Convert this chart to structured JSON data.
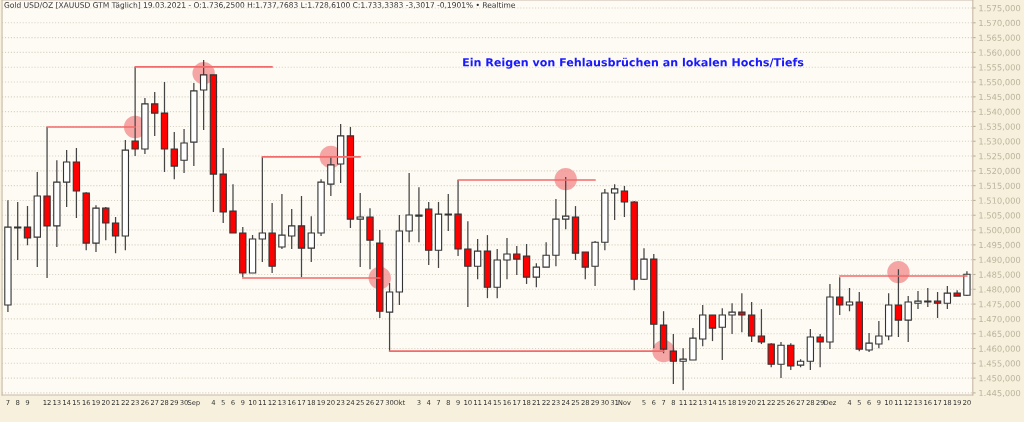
{
  "chart_data": {
    "type": "candlestick",
    "title": "Gold USD/OZ [XAUUSD GTM Täglich] 19.03.2021 - O:1.736,2500 H:1.737,7683 L:1.728,6100 C:1.733,3383 -3,3017 -0,1901% • Realtime",
    "annotations": [
      "Ein Reigen von Fehlausbrüchen an lokalen Hochs/Tiefs"
    ],
    "categories": [
      "7",
      "8",
      "9",
      null,
      "12",
      "13",
      "14",
      "15",
      "16",
      "19",
      "20",
      "21",
      "22",
      "23",
      "26",
      "27",
      "28",
      "29",
      "30",
      "Sep",
      null,
      "4",
      "5",
      "6",
      "9",
      "10",
      "11",
      "12",
      "13",
      "16",
      "17",
      "18",
      "19",
      "20",
      "23",
      "24",
      "25",
      "26",
      "27",
      "30",
      "Okt",
      null,
      "3",
      "4",
      "7",
      "8",
      "9",
      "10",
      "11",
      "14",
      "15",
      "16",
      "17",
      "18",
      "21",
      "22",
      "23",
      "24",
      "25",
      "28",
      "29",
      "30",
      "31",
      "Nov",
      null,
      "5",
      "6",
      "7",
      "8",
      "11",
      "12",
      "13",
      "14",
      "15",
      "18",
      "19",
      "20",
      "21",
      "22",
      "25",
      "26",
      "27",
      "28",
      "29",
      "Dez",
      null,
      "4",
      "5",
      "6",
      "9",
      "10",
      "11",
      "12",
      "13",
      "16",
      "17",
      "18",
      "19",
      "20"
    ],
    "ohlc": [
      [
        1474.7,
        1510.1,
        1472.3,
        1501.0
      ],
      [
        1500.7,
        1509.5,
        1489.9,
        1501.0
      ],
      [
        1501.0,
        1508.1,
        1494.9,
        1497.3
      ],
      [
        1497.6,
        1519.6,
        1487.5,
        1511.5
      ],
      [
        1511.5,
        1534.8,
        1483.8,
        1501.4
      ],
      [
        1501.4,
        1523.6,
        1494.3,
        1516.2
      ],
      [
        1516.2,
        1527.0,
        1507.8,
        1523.0
      ],
      [
        1523.0,
        1527.7,
        1504.1,
        1513.2
      ],
      [
        1512.5,
        1512.8,
        1493.2,
        1495.6
      ],
      [
        1495.6,
        1508.4,
        1492.6,
        1507.4
      ],
      [
        1507.4,
        1507.8,
        1496.6,
        1502.4
      ],
      [
        1502.4,
        1504.4,
        1492.2,
        1498.0
      ],
      [
        1498.0,
        1530.4,
        1493.2,
        1527.0
      ],
      [
        1530.1,
        1555.1,
        1525.0,
        1527.4
      ],
      [
        1527.4,
        1544.6,
        1525.7,
        1542.6
      ],
      [
        1542.6,
        1546.6,
        1531.8,
        1539.5
      ],
      [
        1539.5,
        1550.0,
        1519.6,
        1527.4
      ],
      [
        1527.4,
        1533.1,
        1517.2,
        1521.6
      ],
      [
        1523.6,
        1534.1,
        1519.3,
        1529.4
      ],
      [
        1529.7,
        1549.7,
        1521.6,
        1547.0
      ],
      [
        1547.3,
        1557.4,
        1533.8,
        1552.4
      ],
      [
        1552.4,
        1552.4,
        1506.1,
        1518.9
      ],
      [
        1518.9,
        1527.7,
        1502.4,
        1506.1
      ],
      [
        1506.4,
        1515.5,
        1499.0,
        1499.0
      ],
      [
        1499.0,
        1501.0,
        1484.1,
        1485.5
      ],
      [
        1485.5,
        1498.3,
        1485.5,
        1497.0
      ],
      [
        1497.0,
        1524.7,
        1489.2,
        1499.0
      ],
      [
        1499.0,
        1509.1,
        1485.5,
        1487.8
      ],
      [
        1494.3,
        1512.2,
        1493.6,
        1498.3
      ],
      [
        1498.0,
        1507.1,
        1493.6,
        1501.4
      ],
      [
        1501.4,
        1511.5,
        1484.1,
        1493.9
      ],
      [
        1493.9,
        1504.7,
        1489.2,
        1499.0
      ],
      [
        1499.0,
        1517.2,
        1498.0,
        1516.2
      ],
      [
        1515.5,
        1524.7,
        1511.5,
        1522.0
      ],
      [
        1522.3,
        1535.8,
        1515.9,
        1531.8
      ],
      [
        1531.8,
        1534.8,
        1500.7,
        1503.7
      ],
      [
        1503.7,
        1512.5,
        1487.5,
        1504.4
      ],
      [
        1504.4,
        1507.4,
        1486.8,
        1496.6
      ],
      [
        1495.6,
        1500.0,
        1470.3,
        1472.6
      ],
      [
        1472.3,
        1482.1,
        1459.1,
        1479.1
      ],
      [
        1479.1,
        1505.1,
        1474.7,
        1499.7
      ],
      [
        1499.7,
        1519.3,
        1495.9,
        1505.1
      ],
      [
        1504.7,
        1514.5,
        1495.9,
        1505.1
      ],
      [
        1507.1,
        1509.5,
        1488.2,
        1493.2
      ],
      [
        1493.2,
        1509.5,
        1487.2,
        1505.4
      ],
      [
        1505.1,
        1512.2,
        1499.7,
        1505.4
      ],
      [
        1505.4,
        1516.9,
        1491.2,
        1493.6
      ],
      [
        1493.6,
        1503.0,
        1474.0,
        1487.8
      ],
      [
        1487.8,
        1497.0,
        1483.4,
        1492.9
      ],
      [
        1492.9,
        1498.3,
        1477.0,
        1480.7
      ],
      [
        1480.7,
        1493.6,
        1477.0,
        1489.9
      ],
      [
        1489.9,
        1497.3,
        1483.4,
        1491.9
      ],
      [
        1491.9,
        1494.6,
        1484.8,
        1490.2
      ],
      [
        1491.2,
        1495.3,
        1481.8,
        1484.1
      ],
      [
        1484.1,
        1488.8,
        1480.7,
        1487.5
      ],
      [
        1487.5,
        1495.9,
        1487.5,
        1491.5
      ],
      [
        1491.5,
        1510.5,
        1487.8,
        1503.7
      ],
      [
        1503.7,
        1517.9,
        1500.3,
        1504.7
      ],
      [
        1504.4,
        1508.1,
        1489.9,
        1492.2
      ],
      [
        1492.6,
        1492.6,
        1483.4,
        1487.5
      ],
      [
        1487.8,
        1496.3,
        1481.1,
        1495.9
      ],
      [
        1495.9,
        1513.9,
        1493.2,
        1512.5
      ],
      [
        1512.5,
        1515.5,
        1503.4,
        1513.9
      ],
      [
        1513.2,
        1514.9,
        1504.4,
        1509.5
      ],
      [
        1509.5,
        1509.8,
        1479.7,
        1483.4
      ],
      [
        1483.4,
        1493.9,
        1483.1,
        1490.2
      ],
      [
        1490.2,
        1491.9,
        1460.1,
        1468.2
      ],
      [
        1467.9,
        1472.6,
        1458.4,
        1459.8
      ],
      [
        1459.1,
        1464.9,
        1448.0,
        1455.7
      ],
      [
        1455.7,
        1460.1,
        1445.9,
        1456.4
      ],
      [
        1456.1,
        1466.9,
        1456.1,
        1463.5
      ],
      [
        1463.2,
        1474.7,
        1460.8,
        1471.3
      ],
      [
        1471.3,
        1471.3,
        1462.5,
        1466.9
      ],
      [
        1467.2,
        1473.6,
        1456.1,
        1471.3
      ],
      [
        1471.3,
        1475.3,
        1464.9,
        1472.3
      ],
      [
        1472.3,
        1478.7,
        1465.5,
        1471.3
      ],
      [
        1471.3,
        1475.7,
        1462.2,
        1464.2
      ],
      [
        1464.2,
        1473.3,
        1461.5,
        1462.2
      ],
      [
        1461.5,
        1461.8,
        1453.7,
        1454.7
      ],
      [
        1454.7,
        1462.2,
        1450.0,
        1461.1
      ],
      [
        1461.1,
        1461.8,
        1452.7,
        1454.1
      ],
      [
        1454.4,
        1456.4,
        1453.7,
        1455.7
      ],
      [
        1455.7,
        1466.6,
        1452.7,
        1463.9
      ],
      [
        1463.9,
        1464.9,
        1453.7,
        1462.2
      ],
      [
        1462.2,
        1481.8,
        1459.8,
        1477.4
      ],
      [
        1477.4,
        1484.1,
        1471.3,
        1474.7
      ],
      [
        1474.7,
        1480.4,
        1472.6,
        1475.7
      ],
      [
        1475.7,
        1479.1,
        1459.1,
        1459.8
      ],
      [
        1459.5,
        1465.2,
        1458.8,
        1461.8
      ],
      [
        1461.5,
        1469.3,
        1460.1,
        1464.2
      ],
      [
        1464.2,
        1478.7,
        1462.8,
        1474.7
      ],
      [
        1474.7,
        1486.8,
        1463.9,
        1469.6
      ],
      [
        1469.6,
        1477.7,
        1462.2,
        1475.7
      ],
      [
        1475.3,
        1479.4,
        1473.3,
        1476.0
      ],
      [
        1475.7,
        1480.4,
        1474.0,
        1476.0
      ],
      [
        1476.0,
        1479.1,
        1470.3,
        1475.3
      ],
      [
        1475.3,
        1481.1,
        1473.3,
        1478.7
      ],
      [
        1478.7,
        1479.7,
        1477.7,
        1477.7
      ],
      [
        1478.0,
        1486.1,
        1477.7,
        1485.1
      ]
    ],
    "series": [
      {
        "type": "line",
        "color": "#f26b6b",
        "values": [
          null,
          null,
          null,
          null,
          1534.8,
          null,
          null,
          null,
          null,
          null,
          null,
          null,
          null,
          1534.8,
          null,
          null,
          null,
          null,
          null,
          null,
          null,
          null,
          null,
          null,
          null,
          null,
          null,
          null,
          null,
          null,
          null,
          null,
          null,
          null,
          null,
          null,
          null,
          null,
          null,
          null,
          null,
          null,
          null,
          null,
          null,
          null,
          null,
          null,
          null,
          null,
          null,
          null,
          null,
          null,
          null,
          null,
          null,
          null,
          null,
          null,
          null,
          null,
          null,
          null,
          null,
          null,
          null,
          null,
          null,
          null,
          null,
          null,
          null,
          null,
          null,
          null,
          null,
          null,
          null,
          null,
          null,
          null,
          null,
          null,
          null,
          null,
          null,
          null,
          null,
          null,
          null,
          null,
          null,
          null,
          null,
          null,
          null,
          null,
          null
        ]
      },
      {
        "type": "line",
        "color": "#f26b6b",
        "values": [
          null,
          null,
          null,
          null,
          null,
          null,
          null,
          null,
          null,
          null,
          null,
          null,
          null,
          1555.1,
          null,
          null,
          null,
          null,
          null,
          null,
          null,
          null,
          null,
          null,
          null,
          null,
          null,
          1555.1,
          null,
          null,
          null,
          null,
          null,
          null,
          null,
          null,
          null,
          null,
          null,
          null,
          null,
          null,
          null,
          null,
          null,
          null,
          null,
          null,
          null,
          null,
          null,
          null,
          null,
          null,
          null,
          null,
          null,
          null,
          null,
          null,
          null,
          null,
          null,
          null,
          null,
          null,
          null,
          null,
          null,
          null,
          null,
          null,
          null,
          null,
          null,
          null,
          null,
          null,
          null,
          null,
          null,
          null,
          null,
          null,
          null,
          null,
          null,
          null,
          null,
          null,
          null,
          null,
          null,
          null,
          null,
          null,
          null,
          null,
          null
        ]
      },
      {
        "type": "line",
        "color": "#f26b6b",
        "values": [
          null,
          null,
          null,
          null,
          null,
          null,
          null,
          null,
          null,
          null,
          null,
          null,
          null,
          null,
          null,
          null,
          null,
          null,
          null,
          null,
          null,
          null,
          null,
          null,
          null,
          null,
          1524.7,
          null,
          null,
          null,
          null,
          null,
          null,
          null,
          null,
          null,
          1524.7,
          null,
          null,
          null,
          null,
          null,
          null,
          null,
          null,
          null,
          null,
          null,
          null,
          null,
          null,
          null,
          null,
          null,
          null,
          null,
          null,
          null,
          null,
          null,
          null,
          null,
          null,
          null,
          null,
          null,
          null,
          null,
          null,
          null,
          null,
          null,
          null,
          null,
          null,
          null,
          null,
          null,
          null,
          null,
          null,
          null,
          null,
          null,
          null,
          null,
          null,
          null,
          null,
          null,
          null,
          null,
          null,
          null,
          null,
          null,
          null,
          null,
          null
        ]
      },
      {
        "type": "line",
        "color": "#f26b6b",
        "values": [
          null,
          null,
          null,
          null,
          null,
          null,
          null,
          null,
          null,
          null,
          null,
          null,
          null,
          null,
          null,
          null,
          null,
          null,
          null,
          null,
          null,
          null,
          null,
          null,
          1483.8,
          null,
          null,
          null,
          null,
          null,
          null,
          null,
          null,
          null,
          null,
          null,
          null,
          null,
          1483.8,
          null,
          null,
          null,
          null,
          null,
          null,
          null,
          null,
          null,
          null,
          null,
          null,
          null,
          null,
          null,
          null,
          null,
          null,
          null,
          null,
          null,
          null,
          null,
          null,
          null,
          null,
          null,
          null,
          null,
          null,
          null,
          null,
          null,
          null,
          null,
          null,
          null,
          null,
          null,
          null,
          null,
          null,
          null,
          null,
          null,
          null,
          null,
          null,
          null,
          null,
          null,
          null,
          null,
          null,
          null,
          null,
          null,
          null,
          null,
          null
        ]
      },
      {
        "type": "line",
        "color": "#f26b6b",
        "values": [
          null,
          null,
          null,
          null,
          null,
          null,
          null,
          null,
          null,
          null,
          null,
          null,
          null,
          null,
          null,
          null,
          null,
          null,
          null,
          null,
          null,
          null,
          null,
          null,
          null,
          null,
          null,
          null,
          null,
          null,
          null,
          null,
          null,
          null,
          null,
          null,
          null,
          null,
          null,
          1459.1,
          null,
          null,
          null,
          null,
          null,
          null,
          null,
          null,
          null,
          null,
          null,
          null,
          null,
          null,
          null,
          null,
          null,
          null,
          null,
          null,
          null,
          null,
          null,
          null,
          null,
          null,
          null,
          1459.1,
          null,
          null,
          null,
          null,
          null,
          null,
          null,
          null,
          null,
          null,
          null,
          null,
          null,
          null,
          null,
          null,
          null,
          null,
          null,
          null,
          null,
          null,
          null,
          null,
          null,
          null,
          null,
          null,
          null,
          null,
          null
        ]
      },
      {
        "type": "line",
        "color": "#f26b6b",
        "values": [
          null,
          null,
          null,
          null,
          null,
          null,
          null,
          null,
          null,
          null,
          null,
          null,
          null,
          null,
          null,
          null,
          null,
          null,
          null,
          null,
          null,
          null,
          null,
          null,
          null,
          null,
          null,
          null,
          null,
          null,
          null,
          null,
          null,
          null,
          null,
          null,
          null,
          null,
          null,
          null,
          null,
          null,
          null,
          null,
          null,
          null,
          1516.9,
          null,
          null,
          null,
          null,
          null,
          null,
          null,
          null,
          null,
          null,
          null,
          null,
          null,
          1516.9,
          null,
          null,
          null,
          null,
          null,
          null,
          null,
          null,
          null,
          null,
          null,
          null,
          null,
          null,
          null,
          null,
          null,
          null,
          null,
          null,
          null,
          null,
          null,
          null,
          null,
          null,
          null,
          null,
          null,
          null,
          null,
          null,
          null,
          null,
          null,
          null,
          null,
          null
        ]
      },
      {
        "type": "line",
        "color": "#f26b6b",
        "values": [
          null,
          null,
          null,
          null,
          null,
          null,
          null,
          null,
          null,
          null,
          null,
          null,
          null,
          null,
          null,
          null,
          null,
          null,
          null,
          null,
          null,
          null,
          null,
          null,
          null,
          null,
          null,
          null,
          null,
          null,
          null,
          null,
          null,
          null,
          null,
          null,
          null,
          null,
          null,
          null,
          null,
          null,
          null,
          null,
          null,
          null,
          null,
          null,
          null,
          null,
          null,
          null,
          null,
          null,
          null,
          null,
          null,
          null,
          null,
          null,
          null,
          null,
          null,
          null,
          null,
          null,
          null,
          null,
          null,
          null,
          null,
          null,
          null,
          null,
          null,
          null,
          null,
          null,
          null,
          null,
          null,
          null,
          null,
          null,
          null,
          1484.5,
          null,
          null,
          null,
          null,
          null,
          null,
          null,
          null,
          null,
          null,
          null,
          null,
          1484.5
        ]
      },
      {
        "type": "scatter",
        "color": "#f28a8a",
        "marker": "circle",
        "values": [
          null,
          null,
          null,
          null,
          null,
          null,
          null,
          null,
          null,
          null,
          null,
          null,
          null,
          1534.8,
          null,
          null,
          null,
          null,
          null,
          null,
          1553.0,
          null,
          null,
          null,
          null,
          null,
          null,
          null,
          null,
          null,
          null,
          null,
          null,
          1524.7,
          null,
          null,
          null,
          null,
          1483.8,
          null,
          null,
          null,
          null,
          null,
          null,
          null,
          null,
          null,
          null,
          null,
          null,
          null,
          null,
          null,
          null,
          null,
          null,
          1517.2,
          null,
          null,
          null,
          null,
          null,
          null,
          null,
          null,
          null,
          1459.1,
          null,
          null,
          null,
          null,
          null,
          null,
          null,
          null,
          null,
          null,
          null,
          null,
          null,
          null,
          null,
          null,
          null,
          null,
          null,
          null,
          null,
          null,
          null,
          1485.8,
          null,
          null,
          null,
          null,
          null,
          null,
          null
        ]
      }
    ],
    "ylim": [
      1444.3,
      1577.7
    ],
    "yticks": [
      {
        "value": 1445,
        "label": "1.445,000"
      },
      {
        "value": 1450,
        "label": "1.450,000"
      },
      {
        "value": 1455,
        "label": "1.455,000"
      },
      {
        "value": 1460,
        "label": "1.460,000"
      },
      {
        "value": 1465,
        "label": "1.465,000"
      },
      {
        "value": 1470,
        "label": "1.470,000"
      },
      {
        "value": 1475,
        "label": "1.475,000"
      },
      {
        "value": 1480,
        "label": "1.480,000"
      },
      {
        "value": 1485,
        "label": "1.485,000"
      },
      {
        "value": 1490,
        "label": "1.490,000"
      },
      {
        "value": 1495,
        "label": "1.495,000"
      },
      {
        "value": 1500,
        "label": "1.500,000"
      },
      {
        "value": 1505,
        "label": "1.505,000"
      },
      {
        "value": 1510,
        "label": "1.510,000"
      },
      {
        "value": 1515,
        "label": "1.515,000"
      },
      {
        "value": 1520,
        "label": "1.520,000"
      },
      {
        "value": 1525,
        "label": "1.525,000"
      },
      {
        "value": 1530,
        "label": "1.530,000"
      },
      {
        "value": 1535,
        "label": "1.535,000"
      },
      {
        "value": 1540,
        "label": "1.540,000"
      },
      {
        "value": 1545,
        "label": "1.545,000"
      },
      {
        "value": 1550,
        "label": "1.550,000"
      },
      {
        "value": 1555,
        "label": "1.555,000"
      },
      {
        "value": 1560,
        "label": "1.560,000"
      },
      {
        "value": 1565,
        "label": "1.565,000"
      },
      {
        "value": 1570,
        "label": "1.570,000"
      },
      {
        "value": 1575,
        "label": "1.575,000"
      }
    ],
    "grid": "y"
  }
}
